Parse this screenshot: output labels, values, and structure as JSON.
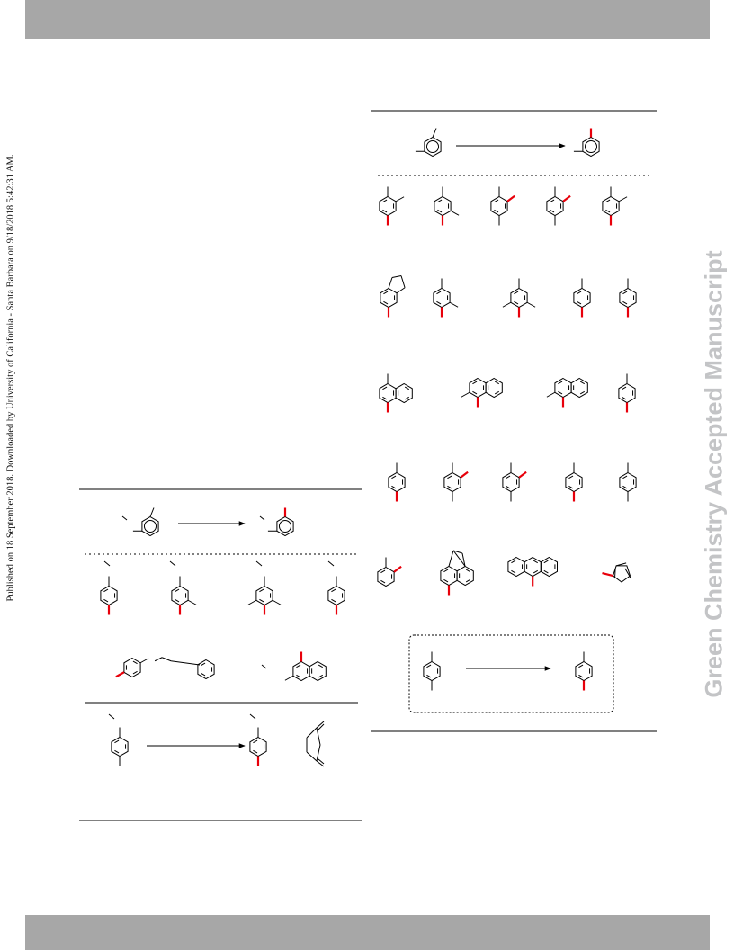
{
  "page": {
    "side_note": "Published on 18 September 2018. Downloaded by University of California - Santa Barbara on 9/18/2018 5:42:31 AM.",
    "watermark": "Green Chemistry Accepted Manuscript"
  },
  "colors": {
    "header_band": "#a7a7a7",
    "watermark": "#c3c4c6",
    "bond": "#000000",
    "highlight": "#e8000b"
  }
}
